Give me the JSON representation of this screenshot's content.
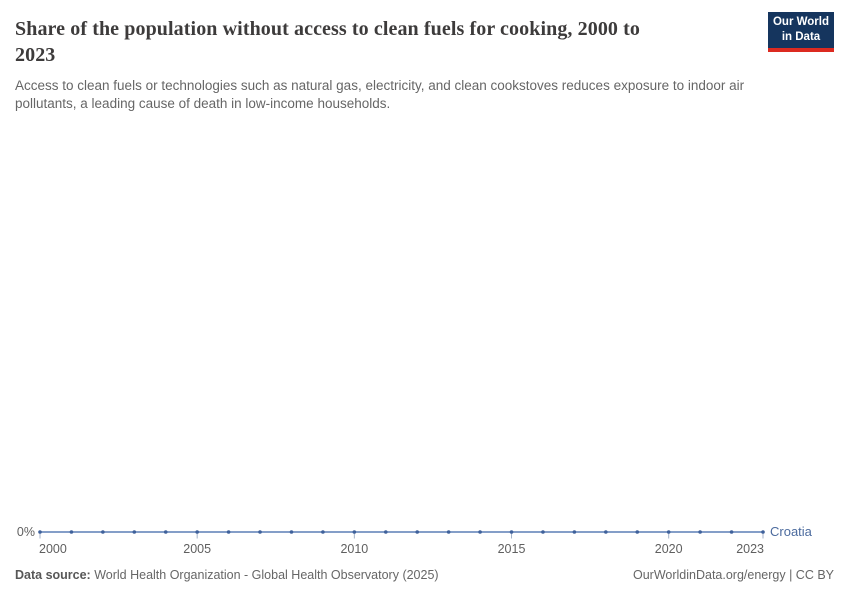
{
  "header": {
    "title": "Share of the population without access to clean fuels for cooking, 2000 to 2023",
    "subtitle": "Access to clean fuels or technologies such as natural gas, electricity, and clean cookstoves reduces exposure to indoor air pollutants, a leading cause of death in low-income households.",
    "logo": {
      "line1": "Our World",
      "line2": "in Data",
      "bg_color": "#15355e",
      "bar_color": "#dc2a20"
    }
  },
  "chart_data": {
    "type": "line",
    "title": "Share of the population without access to clean fuels for cooking, 2000 to 2023",
    "xlabel": "",
    "ylabel": "",
    "unit": "%",
    "x": [
      2000,
      2001,
      2002,
      2003,
      2004,
      2005,
      2006,
      2007,
      2008,
      2009,
      2010,
      2011,
      2012,
      2013,
      2014,
      2015,
      2016,
      2017,
      2018,
      2019,
      2020,
      2021,
      2022,
      2023
    ],
    "series": [
      {
        "name": "Croatia",
        "color": "#4c6b9e",
        "values": [
          0,
          0,
          0,
          0,
          0,
          0,
          0,
          0,
          0,
          0,
          0,
          0,
          0,
          0,
          0,
          0,
          0,
          0,
          0,
          0,
          0,
          0,
          0,
          0
        ]
      }
    ],
    "x_ticks": [
      2000,
      2005,
      2010,
      2015,
      2020,
      2023
    ],
    "y_ticks": [
      "0%"
    ],
    "y_axis_tick_label": "0%",
    "ylim": [
      0,
      0
    ],
    "grid": false,
    "legend_position": "right-of-line-end",
    "line_color": "#5b7fb5",
    "marker_color": "#3f619b",
    "axis_tick_color": "#a4b2c8"
  },
  "footer": {
    "source_label": "Data source:",
    "source_text": " World Health Organization - Global Health Observatory (2025)",
    "credit": "OurWorldinData.org/energy | CC BY"
  }
}
